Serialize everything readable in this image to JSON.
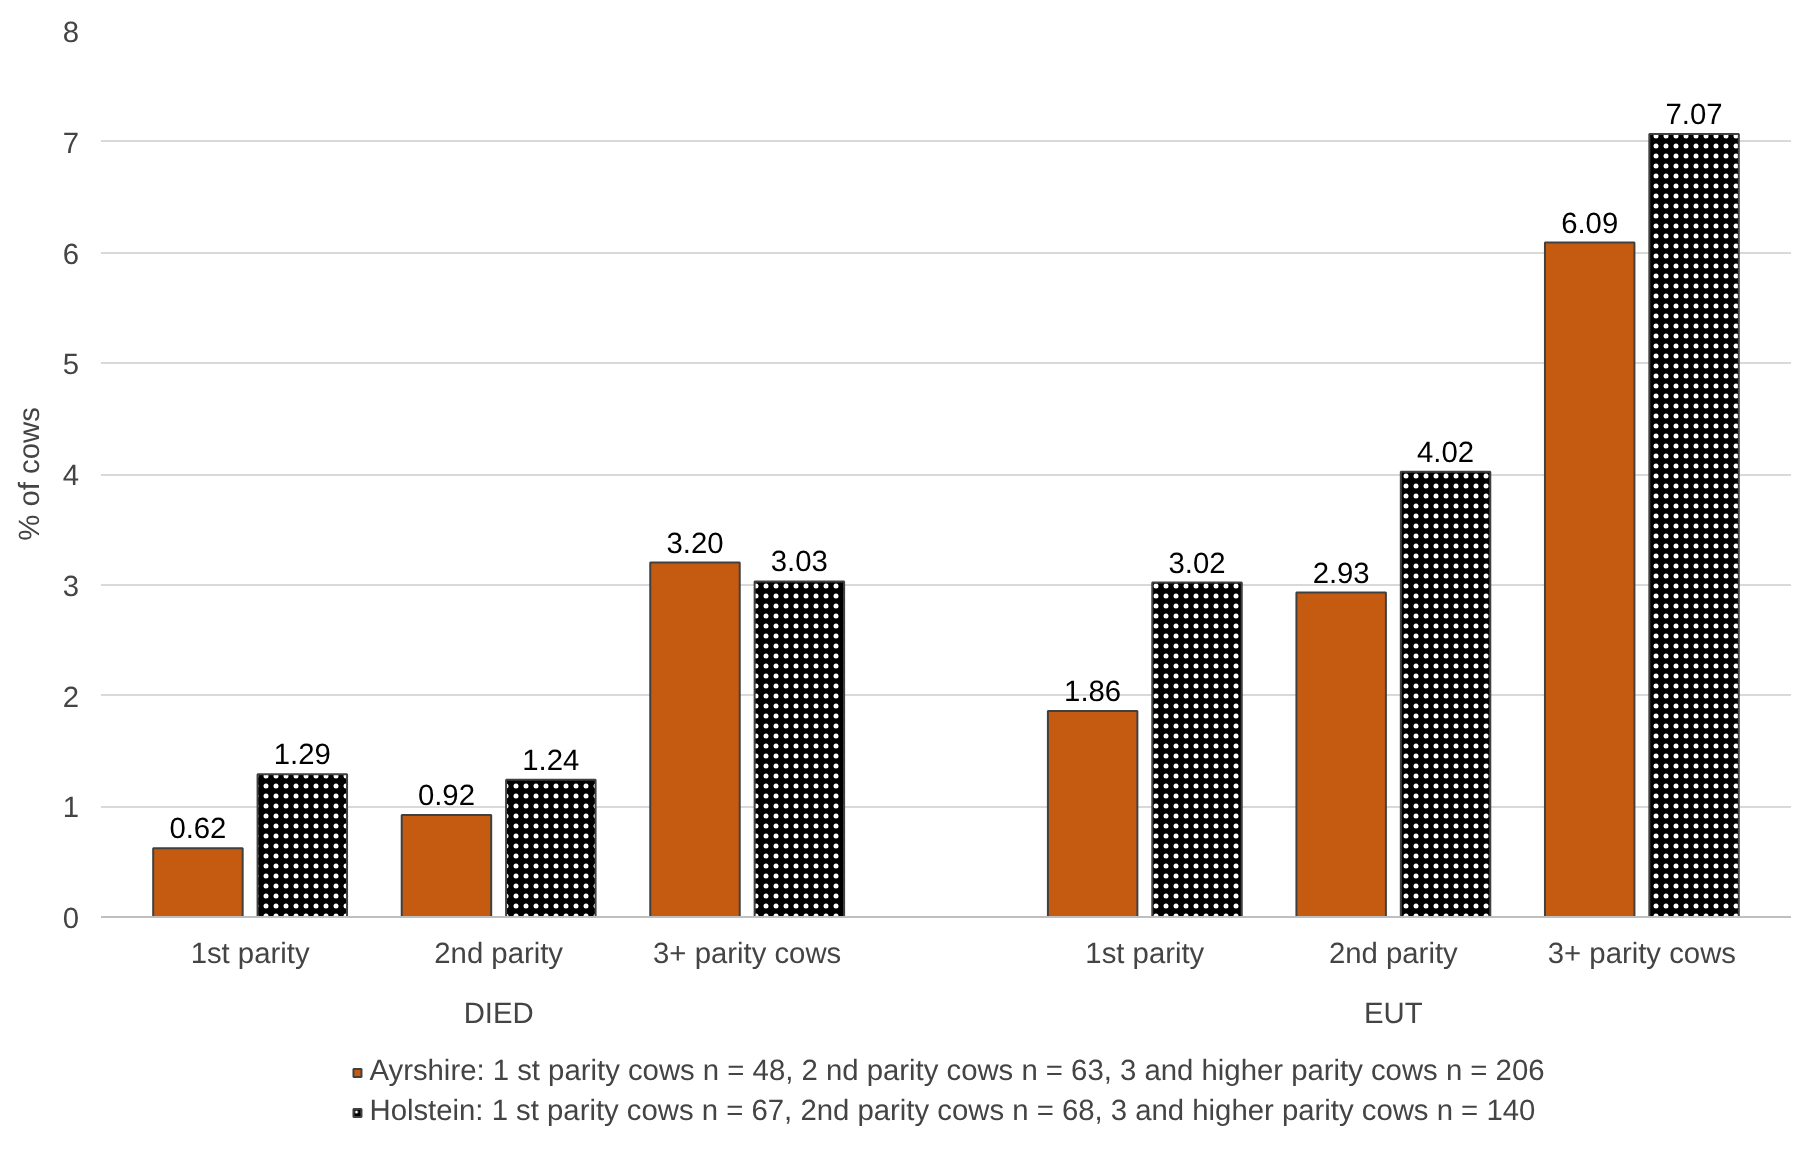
{
  "chart_data": {
    "type": "bar",
    "ylabel": "% of cows",
    "categories": [
      "1st parity",
      "2nd parity",
      "3+ parity cows",
      "1st parity",
      "2nd parity",
      "3+ parity cows"
    ],
    "annotations": [
      "DIED",
      "EUT"
    ],
    "series": [
      {
        "name": "Ayrshire: 1 st parity cows n = 48, 2 nd parity cows n = 63, 3 and higher parity cows n = 206",
        "color": "#c55a11",
        "values": [
          0.62,
          0.92,
          3.2,
          1.86,
          2.93,
          6.09
        ],
        "value_labels": [
          "0.62",
          "0.92",
          "3.20",
          "1.86",
          "2.93",
          "6.09"
        ]
      },
      {
        "name": "Holstein: 1 st parity cows n = 67, 2nd parity cows n = 68, 3 and higher parity cows n = 140",
        "color": "#000000",
        "values": [
          1.29,
          1.24,
          3.03,
          3.02,
          4.02,
          7.07
        ],
        "value_labels": [
          "1.29",
          "1.24",
          "3.03",
          "3.02",
          "4.02",
          "7.07"
        ]
      }
    ],
    "ylim": [
      0,
      8
    ],
    "yticks": [
      0,
      1,
      2,
      3,
      4,
      5,
      6,
      7,
      8
    ],
    "grid": "y",
    "legend": "bottom"
  }
}
